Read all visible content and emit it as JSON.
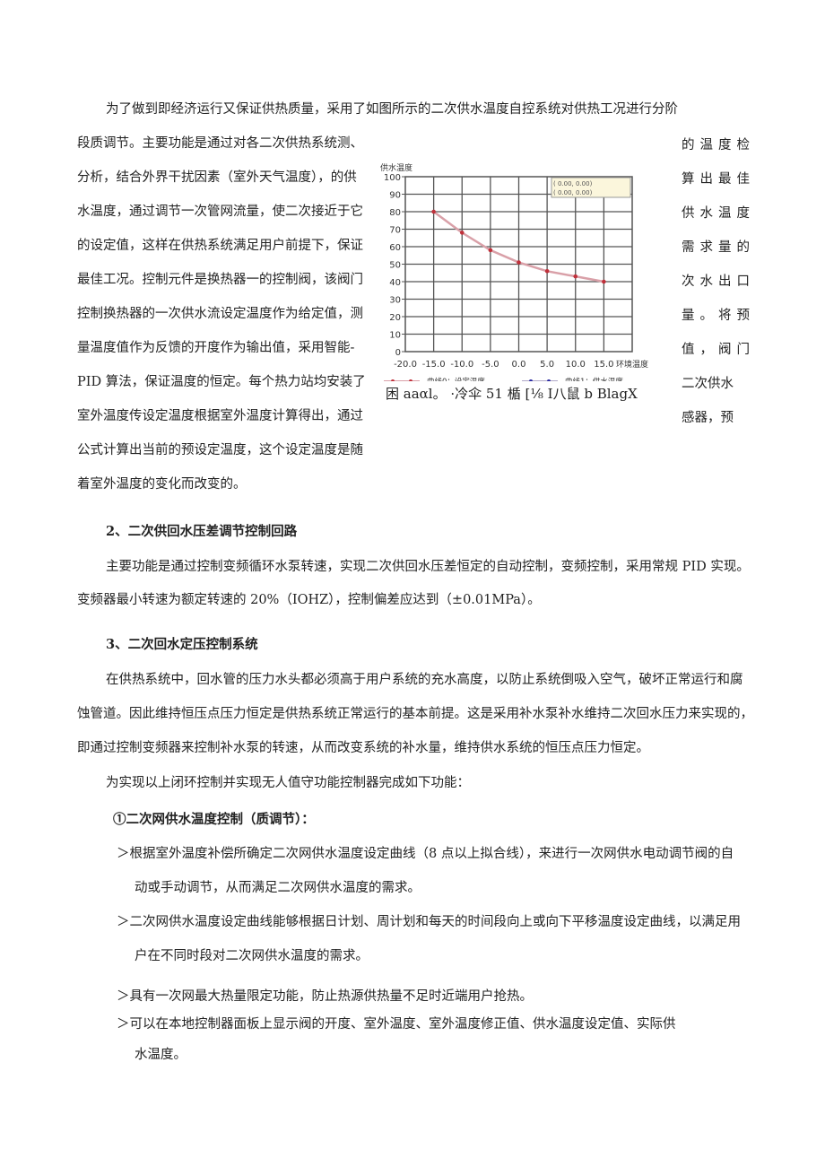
{
  "intro": {
    "line0": "为了做到即经济运行又保证供热质量，采用了如图所示的二次供水温度自控系统对供热工况进行分阶",
    "left_lines": [
      "段质调节。主要功能是通过对各二次供热系统测、",
      "分析，结合外界干扰因素（室外天气温度），的供",
      "水温度，通过调节一次管网流量，使二次接近于它",
      "的设定值，这样在供热系统满足用户前提下，保证",
      "最佳工况。控制元件是换热器一的控制阀，该阀门",
      "控制换热器的一次供水流设定温度作为给定值，测",
      "量温度值作为反馈的开度作为输出值，采用智能-",
      "PID 算法，保证温度的恒定。每个热力站均安装了",
      "室外温度传设定温度根据室外温度计算得出，通过",
      "公式计算出当前的预设定温度，这个设定温度是随",
      "着室外温度的变化而改变的。"
    ],
    "right_lines": [
      "的温度检",
      "算出最佳",
      "供水温度",
      "需求量的",
      "次水出口",
      "量。将预",
      "值，阀门",
      "二次供水",
      "感器，预"
    ]
  },
  "figure_caption": "困 aaαl。 ·冷伞 51 楯 [⅛ I八鼠 b BlagX",
  "chart_data": {
    "type": "line",
    "title": "",
    "ylabel": "供水温度",
    "xlabel": "环境温度",
    "xlim": [
      -20,
      20
    ],
    "ylim": [
      0,
      100
    ],
    "xticks": [
      "-20.0",
      "-15.0",
      "-10.0",
      "-5.0",
      "0.0",
      "5.0",
      "10.0",
      "15.0"
    ],
    "yticks": [
      "0",
      "10",
      "20",
      "30",
      "40",
      "50",
      "60",
      "70",
      "80",
      "90",
      "100"
    ],
    "grid": true,
    "legend_position": "bottom",
    "readout": [
      "(      0.00,       0.00)",
      "(      0.00,       0.00)"
    ],
    "series": [
      {
        "name": "曲线0：设定温度",
        "color": "#c0303a",
        "line_color": "#d9a0a8",
        "x": [
          -15,
          -10,
          -5,
          0,
          5,
          10,
          15
        ],
        "y": [
          80,
          68,
          58,
          51,
          46,
          43,
          40
        ]
      },
      {
        "name": "曲线1：供水温度",
        "color": "#2a2aa0",
        "line_color": "#b0a8c8",
        "x": [],
        "y": []
      }
    ]
  },
  "sections": [
    {
      "heading": "2、二次供回水压差调节控制回路",
      "lines": [
        "主要功能是通过控制变频循环水泵转速，实现二次供回水压差恒定的自动控制，变频控制，采用常规 PID 实现。",
        "变频器最小转速为额定转速的 20%（IOHZ），控制偏差应达到（±0.01MPa）。"
      ]
    },
    {
      "heading": "3、二次回水定压控制系统",
      "lines": [
        "在供热系统中，回水管的压力水头都必须高于用户系统的充水高度，以防止系统倒吸入空气，破坏正常运行和腐",
        "蚀管道。因此维持恒压点压力恒定是供热系统正常运行的基本前提。这是采用补水泵补水维持二次回水压力来实现的，",
        "即通过控制变频器来控制补水泵的转速，从而改变系统的补水量，维持供水系统的恒压点压力恒定。",
        "为实现以上闭环控制并实现无人值守功能控制器完成如下功能："
      ]
    }
  ],
  "function1": {
    "heading": "①二次网供水温度控制（质调节）：",
    "items": [
      [
        "＞根据室外温度补偿所确定二次网供水温度设定曲线（8 点以上拟合线），来进行一次网供水电动调节阀的自",
        "动或手动调节，从而满足二次网供水温度的需求。"
      ],
      [
        "＞二次网供水温度设定曲线能够根据日计划、周计划和每天的时间段向上或向下平移温度设定曲线，以满足用",
        "户在不同时段对二次网供水温度的需求。"
      ],
      [
        "＞具有一次网最大热量限定功能，防止热源供热量不足时近端用户抢热。"
      ],
      [
        "＞可以在本地控制器面板上显示阀的开度、室外温度、室外温度修正值、供水温度设定值、实际供",
        "水温度。"
      ]
    ]
  }
}
